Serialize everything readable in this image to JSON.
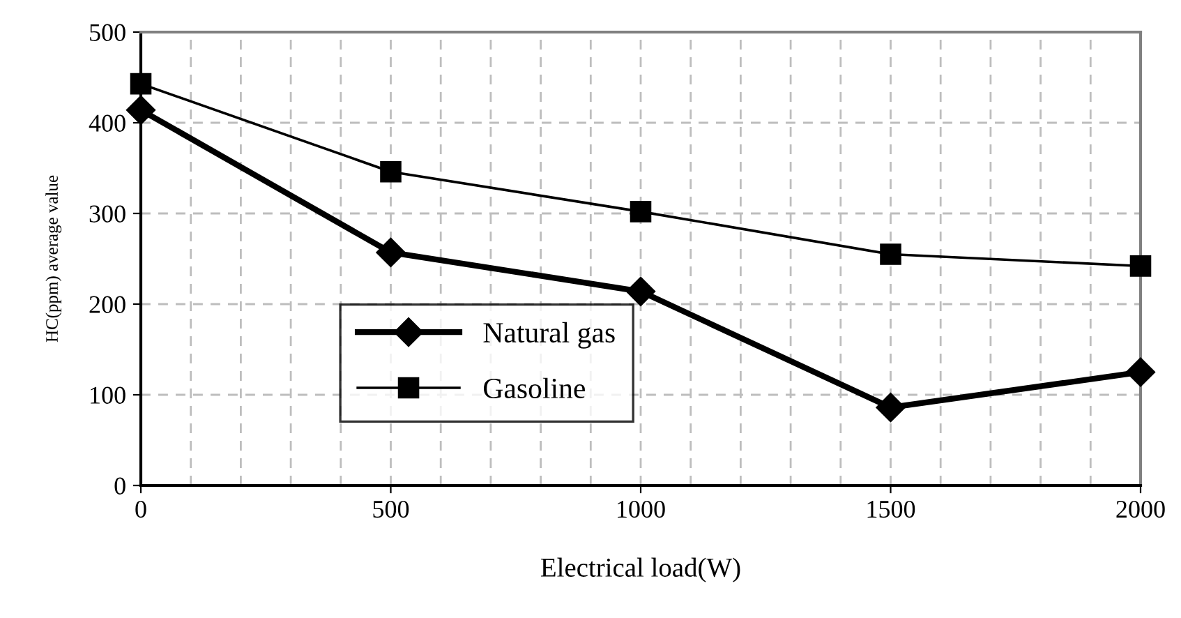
{
  "chart_data": {
    "type": "line",
    "xlabel": "Electrical load(W)",
    "ylabel": "HC(ppm) average value",
    "x": [
      0,
      500,
      1000,
      1500,
      2000
    ],
    "series": [
      {
        "name": "Natural gas",
        "color": "#000000",
        "marker": "diamond",
        "values": [
          414,
          257,
          214,
          86,
          125
        ]
      },
      {
        "name": "Gasoline",
        "color": "#000000",
        "marker": "square",
        "values": [
          443,
          346,
          302,
          255,
          242
        ]
      }
    ],
    "xlim": [
      0,
      2000
    ],
    "ylim": [
      0,
      500
    ],
    "xticks": [
      0,
      {
        "value": 100,
        "label": null
      },
      {
        "value": 200,
        "label": null
      },
      {
        "value": 300,
        "label": null
      },
      {
        "value": 400,
        "label": null
      },
      500,
      {
        "value": 600,
        "label": null
      },
      {
        "value": 700,
        "label": null
      },
      {
        "value": 800,
        "label": null
      },
      {
        "value": 900,
        "label": null
      },
      1000,
      {
        "value": 1100,
        "label": null
      },
      {
        "value": 1200,
        "label": null
      },
      {
        "value": 1300,
        "label": null
      },
      {
        "value": 1400,
        "label": null
      },
      1500,
      {
        "value": 1600,
        "label": null
      },
      {
        "value": 1700,
        "label": null
      },
      {
        "value": 1800,
        "label": null
      },
      {
        "value": 1900,
        "label": null
      },
      2000
    ],
    "yticks": [
      0,
      100,
      200,
      300,
      400,
      500
    ],
    "grid": true,
    "legend": "center left",
    "line_style": "solid"
  }
}
